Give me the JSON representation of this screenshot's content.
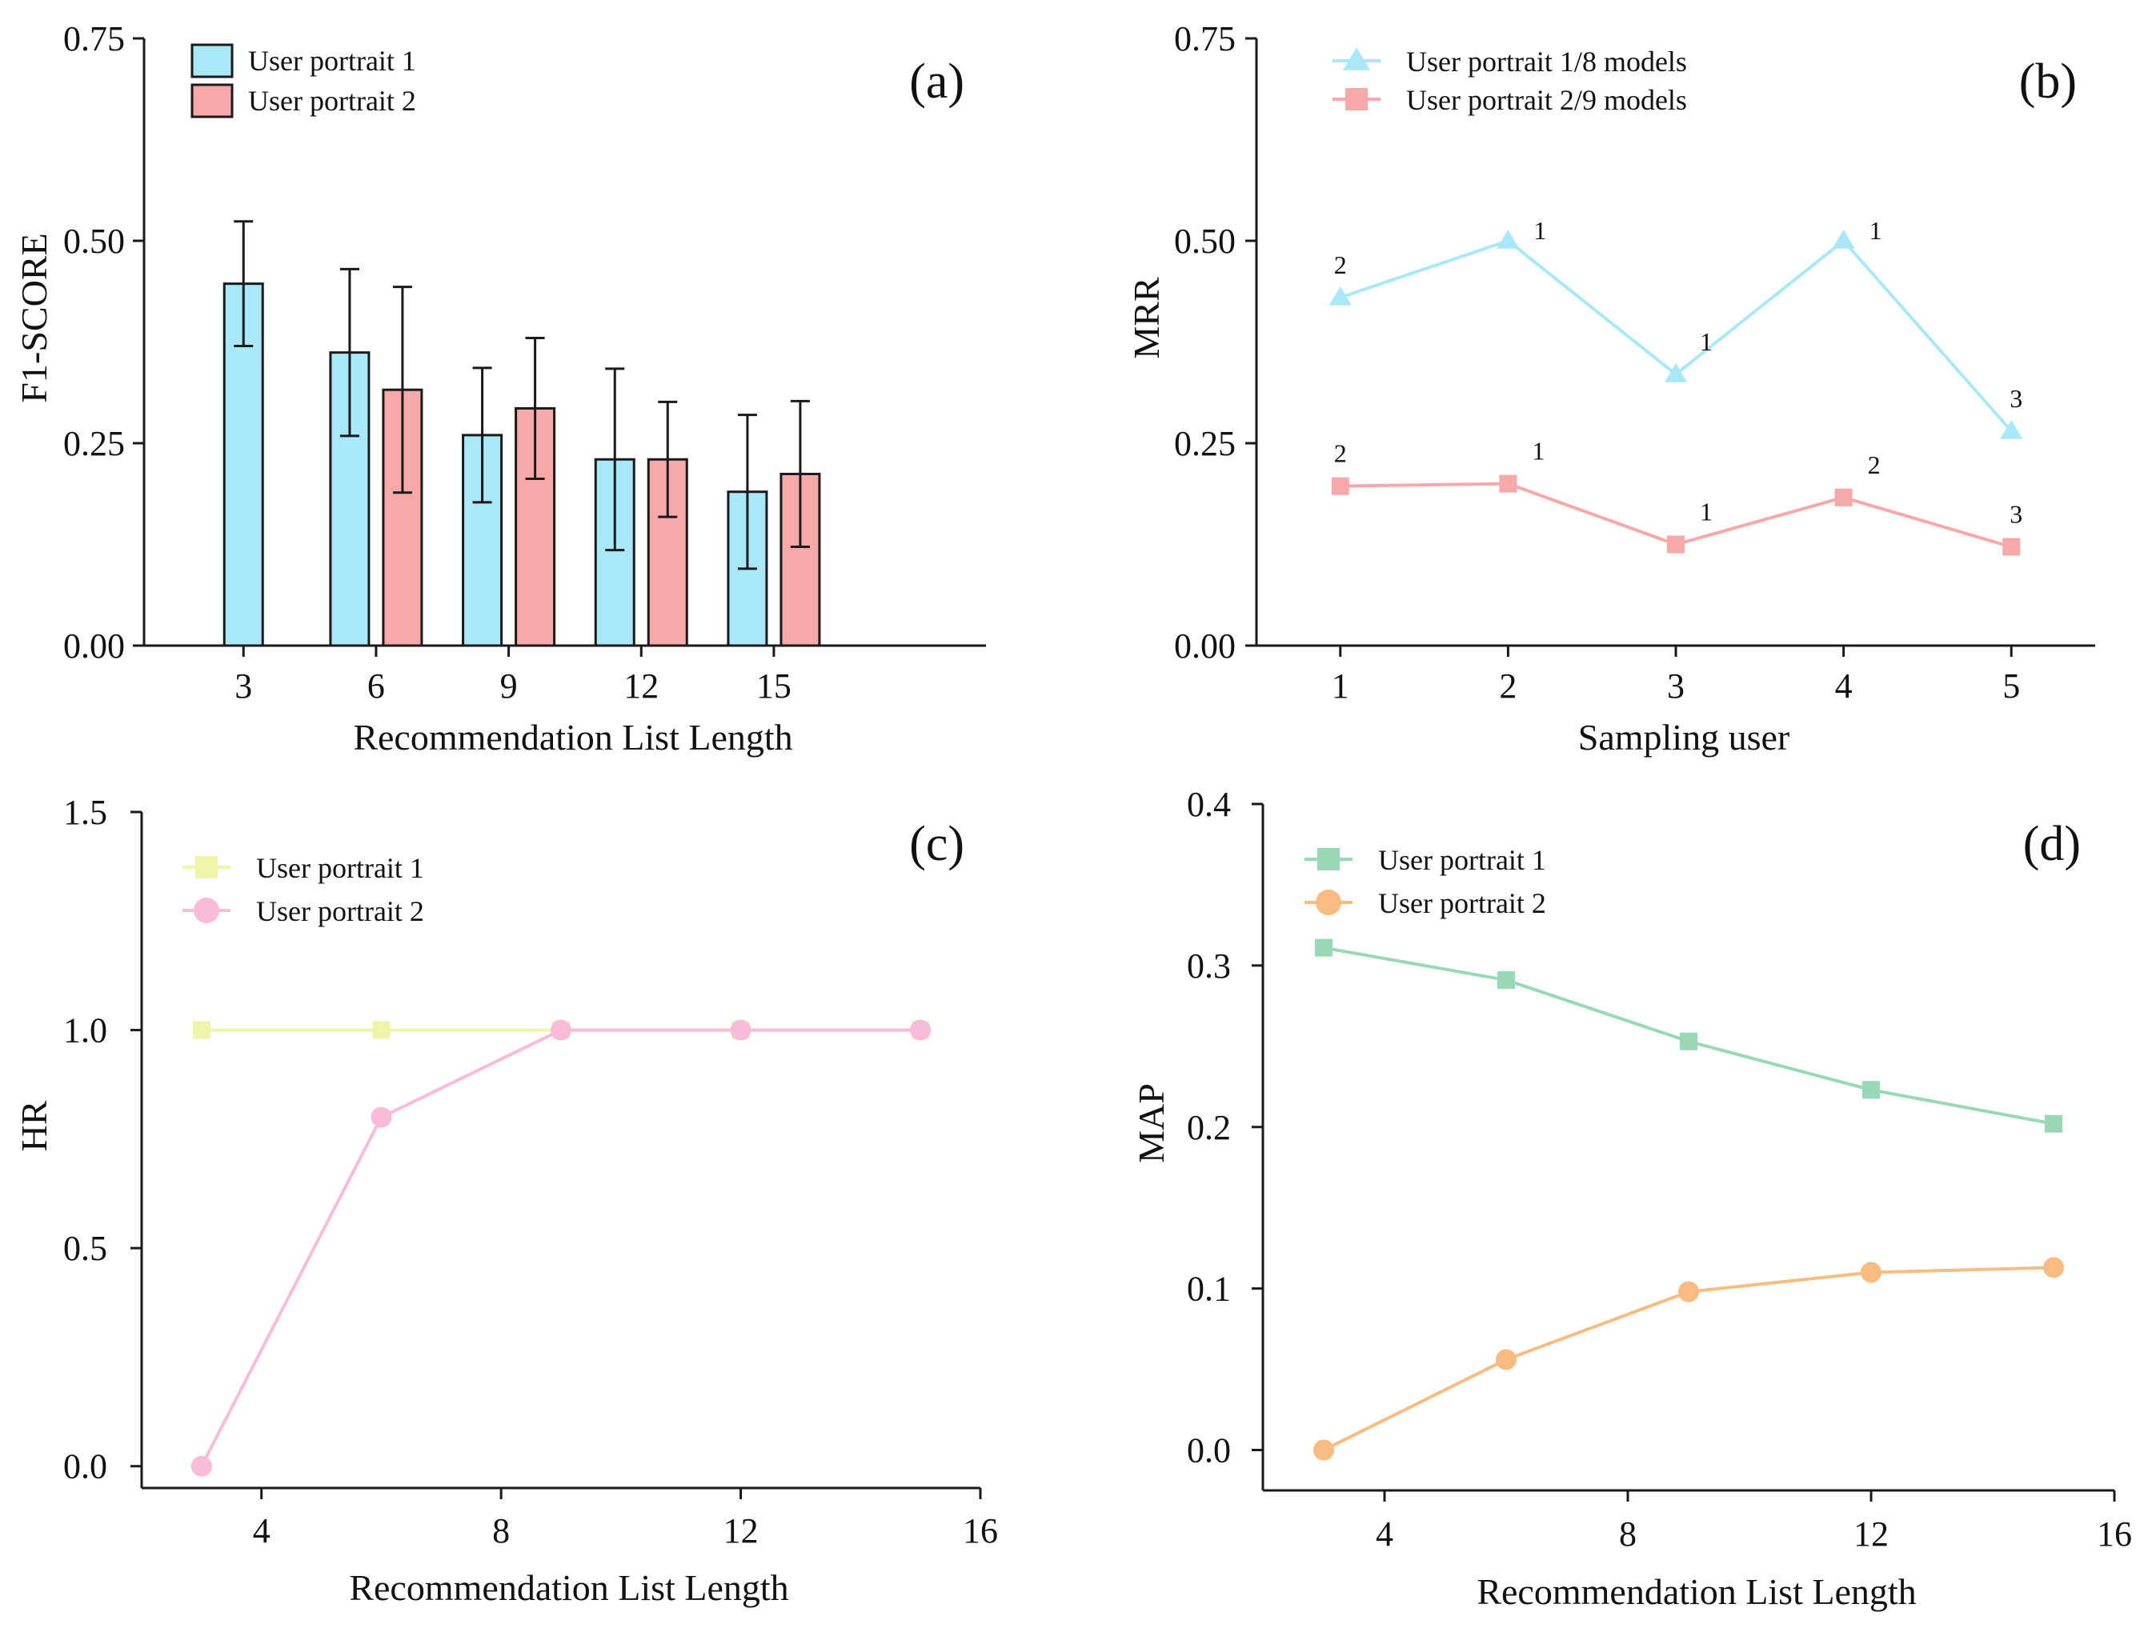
{
  "chart_data": [
    {
      "id": "a",
      "panel_label": "(a)",
      "type": "bar",
      "xlabel": "Recommendation List Length",
      "ylabel": "F1-SCORE",
      "categories": [
        "3",
        "6",
        "9",
        "12",
        "15"
      ],
      "ylim": [
        0,
        0.75
      ],
      "yticks": [
        0,
        0.25,
        0.5,
        0.75
      ],
      "ytick_labels": [
        "0.00",
        "0.25",
        "0.50",
        "0.75"
      ],
      "legend_position": "top-left",
      "grid": false,
      "series": [
        {
          "name": "User portrait 1",
          "color": "#a8e8f8",
          "values": [
            0.447,
            0.362,
            0.26,
            0.23,
            0.19
          ],
          "errors": [
            0.077,
            0.103,
            0.083,
            0.112,
            0.095
          ]
        },
        {
          "name": "User portrait 2",
          "color": "#f8a8a8",
          "values": [
            null,
            0.316,
            0.293,
            0.23,
            0.212
          ],
          "errors": [
            null,
            0.127,
            0.087,
            0.071,
            0.09
          ]
        }
      ]
    },
    {
      "id": "b",
      "panel_label": "(b)",
      "type": "line",
      "xlabel": "Sampling user",
      "ylabel": "MRR",
      "x": [
        1,
        2,
        3,
        4,
        5
      ],
      "xlim": [
        0.5,
        5.5
      ],
      "xticks": [
        1,
        2,
        3,
        4,
        5
      ],
      "xtick_labels": [
        "1",
        "2",
        "3",
        "4",
        "5"
      ],
      "ylim": [
        0,
        0.75
      ],
      "yticks": [
        0,
        0.25,
        0.5,
        0.75
      ],
      "ytick_labels": [
        "0.00",
        "0.25",
        "0.50",
        "0.75"
      ],
      "legend_position": "top-left",
      "grid": false,
      "series": [
        {
          "name": "User portrait 1/8 models",
          "color": "#a8e8f8",
          "marker": "triangle",
          "values": [
            0.43,
            0.5,
            0.335,
            0.5,
            0.265
          ],
          "point_labels": [
            "2",
            "1",
            "1",
            "1",
            "3"
          ]
        },
        {
          "name": "User portrait 2/9 models",
          "color": "#f8a8a8",
          "marker": "square",
          "values": [
            0.197,
            0.2,
            0.125,
            0.183,
            0.122
          ],
          "point_labels": [
            "2",
            "1",
            "1",
            "2",
            "3"
          ]
        }
      ]
    },
    {
      "id": "c",
      "panel_label": "(c)",
      "type": "line",
      "xlabel": "Recommendation List Length",
      "ylabel": "HR",
      "x": [
        3,
        6,
        9,
        12,
        15
      ],
      "xlim": [
        2,
        16
      ],
      "xticks": [
        4,
        8,
        12,
        16
      ],
      "xtick_labels": [
        "4",
        "8",
        "12",
        "16"
      ],
      "ylim": [
        -0.05,
        1.5
      ],
      "yticks": [
        0,
        0.5,
        1.0,
        1.5
      ],
      "ytick_labels": [
        "0.0",
        "0.5",
        "1.0",
        "1.5"
      ],
      "legend_position": "top-left",
      "grid": false,
      "series": [
        {
          "name": "User portrait 1",
          "color": "#eef5a8",
          "marker": "square",
          "values": [
            1.0,
            1.0,
            1.0,
            1.0,
            1.0
          ]
        },
        {
          "name": "User portrait 2",
          "color": "#f8bcd8",
          "marker": "circle",
          "values": [
            0.0,
            0.8,
            1.0,
            1.0,
            1.0
          ]
        }
      ]
    },
    {
      "id": "d",
      "panel_label": "(d)",
      "type": "line",
      "xlabel": "Recommendation List Length",
      "ylabel": "MAP",
      "x": [
        3,
        6,
        9,
        12,
        15
      ],
      "xlim": [
        2,
        16
      ],
      "xticks": [
        4,
        8,
        12,
        16
      ],
      "xtick_labels": [
        "4",
        "8",
        "12",
        "16"
      ],
      "ylim": [
        -0.025,
        0.4
      ],
      "yticks": [
        0,
        0.1,
        0.2,
        0.3,
        0.4
      ],
      "ytick_labels": [
        "0.0",
        "0.1",
        "0.2",
        "0.3",
        "0.4"
      ],
      "legend_position": "top-left",
      "grid": false,
      "series": [
        {
          "name": "User portrait 1",
          "color": "#98d8b4",
          "marker": "square",
          "values": [
            0.311,
            0.291,
            0.253,
            0.223,
            0.202
          ]
        },
        {
          "name": "User portrait 2",
          "color": "#f8bc80",
          "marker": "circle",
          "values": [
            0.0,
            0.056,
            0.098,
            0.11,
            0.113
          ]
        }
      ]
    }
  ]
}
